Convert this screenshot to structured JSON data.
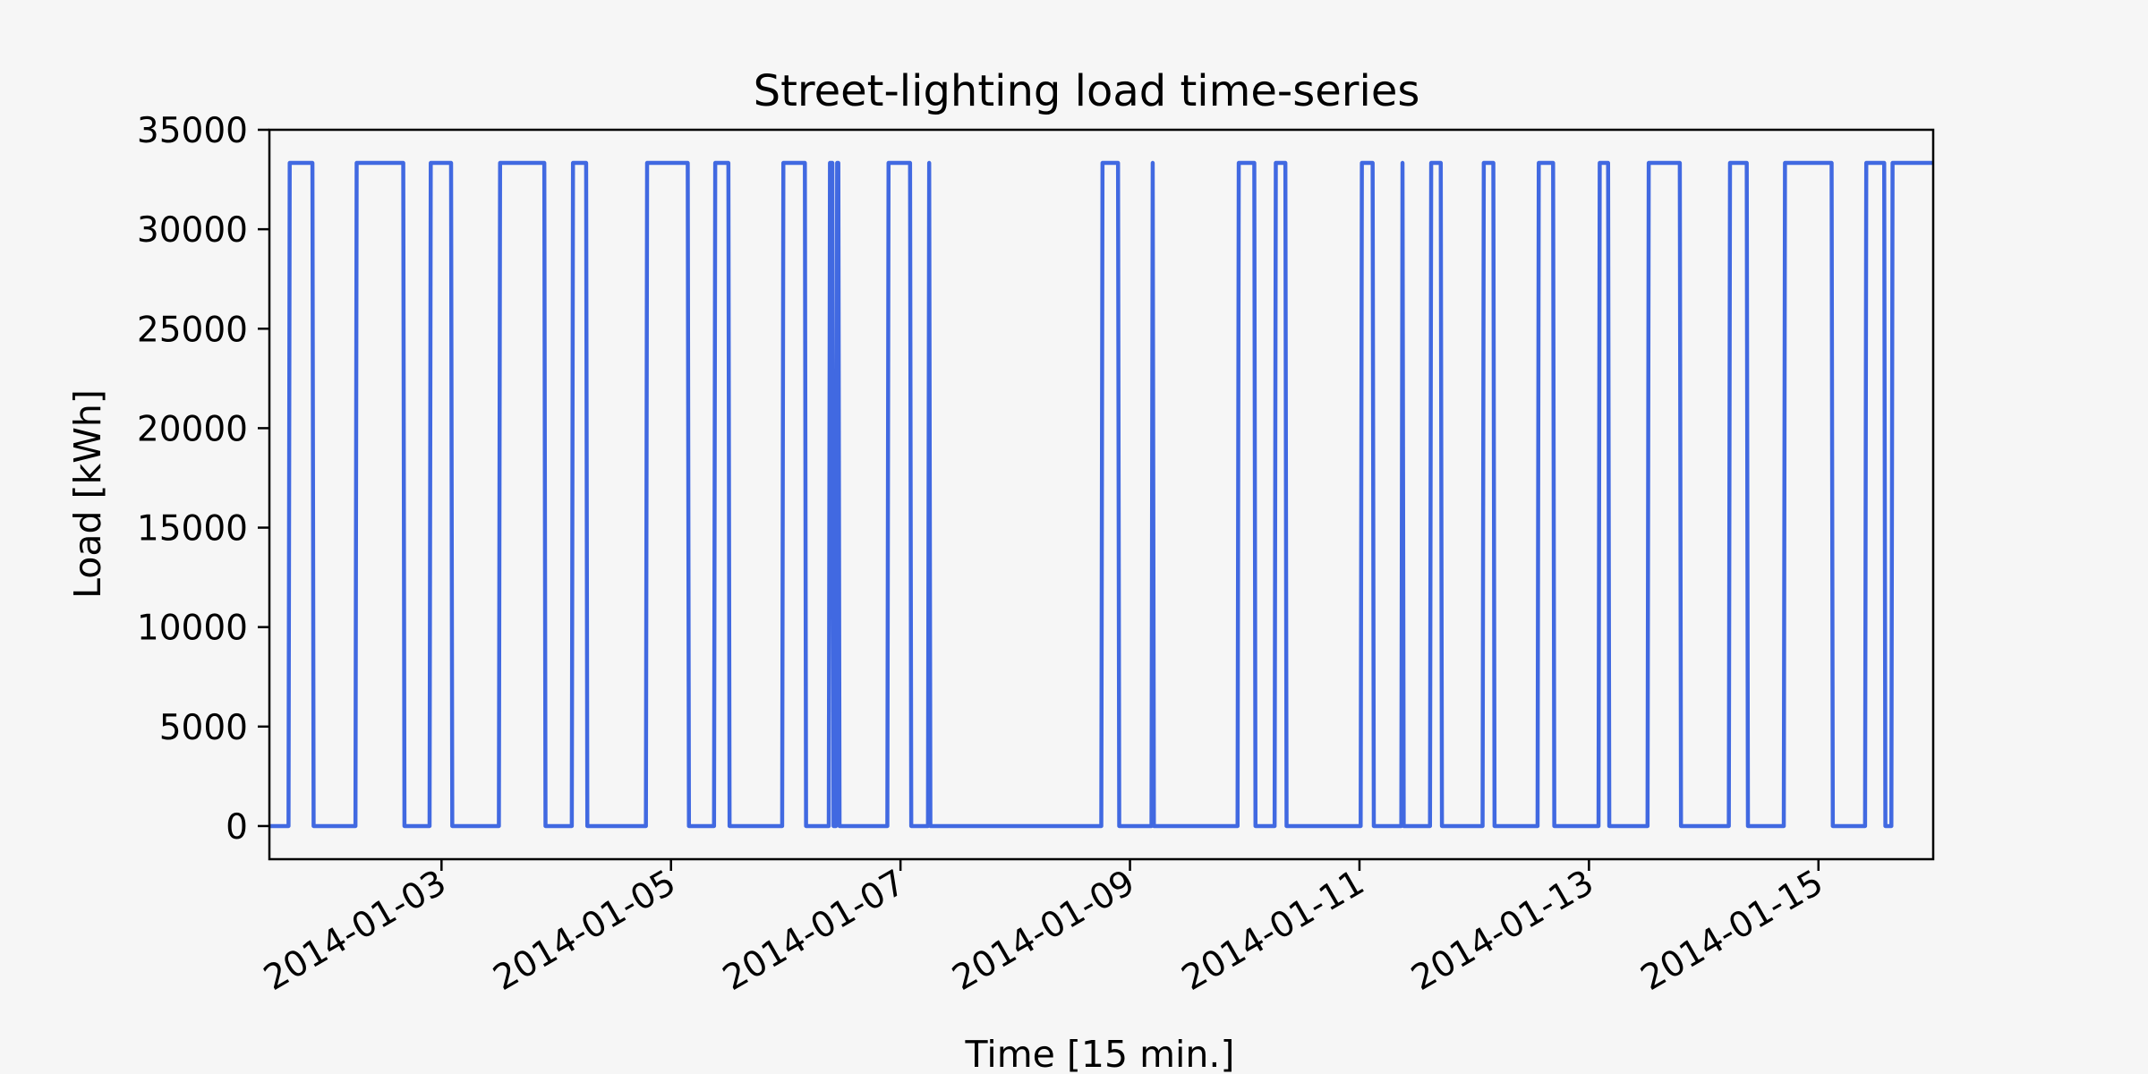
{
  "chart_data": {
    "type": "line",
    "title": "Street-lighting load time-series",
    "xlabel": "Time [15 min.]",
    "ylabel": "Load [kWh]",
    "xlim": [
      "2014-01-01 12:00",
      "2014-01-16 00:00"
    ],
    "ylim": [
      -1667,
      35000
    ],
    "yticks": [
      0,
      5000,
      10000,
      15000,
      20000,
      25000,
      30000,
      35000
    ],
    "xticks": [
      "2014-01-03",
      "2014-01-05",
      "2014-01-07",
      "2014-01-09",
      "2014-01-11",
      "2014-01-13",
      "2014-01-15"
    ],
    "grid": false,
    "legend": "none",
    "colors": {
      "series": "#4169e1",
      "background": "#f6f6f6"
    },
    "series": [
      {
        "points": [
          [
            "2014-01-01 12:00",
            0
          ],
          [
            "2014-01-01 16:00",
            0
          ],
          [
            "2014-01-01 16:15",
            33333
          ],
          [
            "2014-01-01 21:00",
            33333
          ],
          [
            "2014-01-01 21:15",
            0
          ],
          [
            "2014-01-02 06:00",
            0
          ],
          [
            "2014-01-02 06:15",
            33333
          ],
          [
            "2014-01-02 16:00",
            33333
          ],
          [
            "2014-01-02 16:15",
            0
          ],
          [
            "2014-01-02 21:30",
            0
          ],
          [
            "2014-01-02 21:45",
            33333
          ],
          [
            "2014-01-03 02:00",
            33333
          ],
          [
            "2014-01-03 02:15",
            0
          ],
          [
            "2014-01-03 12:00",
            0
          ],
          [
            "2014-01-03 12:15",
            33333
          ],
          [
            "2014-01-03 21:30",
            33333
          ],
          [
            "2014-01-03 21:45",
            0
          ],
          [
            "2014-01-04 03:15",
            0
          ],
          [
            "2014-01-04 03:30",
            33333
          ],
          [
            "2014-01-04 06:15",
            33333
          ],
          [
            "2014-01-04 06:30",
            0
          ],
          [
            "2014-01-04 18:45",
            0
          ],
          [
            "2014-01-04 19:00",
            33333
          ],
          [
            "2014-01-05 03:30",
            33333
          ],
          [
            "2014-01-05 03:45",
            0
          ],
          [
            "2014-01-05 09:00",
            0
          ],
          [
            "2014-01-05 09:15",
            33333
          ],
          [
            "2014-01-05 12:00",
            33333
          ],
          [
            "2014-01-05 12:15",
            0
          ],
          [
            "2014-01-05 23:15",
            0
          ],
          [
            "2014-01-05 23:30",
            33333
          ],
          [
            "2014-01-06 04:00",
            33333
          ],
          [
            "2014-01-06 04:15",
            0
          ],
          [
            "2014-01-06 09:00",
            0
          ],
          [
            "2014-01-06 09:15",
            33333
          ],
          [
            "2014-01-06 09:45",
            33333
          ],
          [
            "2014-01-06 10:00",
            0
          ],
          [
            "2014-01-06 10:30",
            0
          ],
          [
            "2014-01-06 10:45",
            33333
          ],
          [
            "2014-01-06 11:00",
            33333
          ],
          [
            "2014-01-06 11:15",
            0
          ],
          [
            "2014-01-06 21:15",
            0
          ],
          [
            "2014-01-06 21:30",
            33333
          ],
          [
            "2014-01-07 02:00",
            33333
          ],
          [
            "2014-01-07 02:15",
            0
          ],
          [
            "2014-01-07 05:45",
            0
          ],
          [
            "2014-01-07 06:00",
            33333
          ],
          [
            "2014-01-07 06:15",
            0
          ],
          [
            "2014-01-08 18:00",
            0
          ],
          [
            "2014-01-08 18:15",
            33333
          ],
          [
            "2014-01-08 21:30",
            33333
          ],
          [
            "2014-01-08 21:45",
            0
          ],
          [
            "2014-01-09 04:30",
            0
          ],
          [
            "2014-01-09 04:45",
            33333
          ],
          [
            "2014-01-09 05:00",
            0
          ],
          [
            "2014-01-09 22:30",
            0
          ],
          [
            "2014-01-09 22:45",
            33333
          ],
          [
            "2014-01-10 02:00",
            33333
          ],
          [
            "2014-01-10 02:15",
            0
          ],
          [
            "2014-01-10 06:15",
            0
          ],
          [
            "2014-01-10 06:30",
            33333
          ],
          [
            "2014-01-10 08:30",
            33333
          ],
          [
            "2014-01-10 08:45",
            0
          ],
          [
            "2014-01-10 20:45",
            0
          ],
          [
            "2014-01-11 00:15",
            0
          ],
          [
            "2014-01-11 00:30",
            33333
          ],
          [
            "2014-01-11 02:45",
            33333
          ],
          [
            "2014-01-11 03:00",
            0
          ],
          [
            "2014-01-11 08:45",
            0
          ],
          [
            "2014-01-11 09:00",
            33333
          ],
          [
            "2014-01-11 09:15",
            0
          ],
          [
            "2014-01-11 14:45",
            0
          ],
          [
            "2014-01-11 15:00",
            33333
          ],
          [
            "2014-01-11 17:00",
            33333
          ],
          [
            "2014-01-11 17:15",
            0
          ],
          [
            "2014-01-12 01:45",
            0
          ],
          [
            "2014-01-12 02:00",
            33333
          ],
          [
            "2014-01-12 04:00",
            33333
          ],
          [
            "2014-01-12 04:15",
            0
          ],
          [
            "2014-01-12 13:15",
            0
          ],
          [
            "2014-01-12 13:30",
            33333
          ],
          [
            "2014-01-12 16:30",
            33333
          ],
          [
            "2014-01-12 16:45",
            0
          ],
          [
            "2014-01-13 02:00",
            0
          ],
          [
            "2014-01-13 02:15",
            33333
          ],
          [
            "2014-01-13 04:00",
            33333
          ],
          [
            "2014-01-13 04:15",
            0
          ],
          [
            "2014-01-13 12:15",
            0
          ],
          [
            "2014-01-13 12:30",
            33333
          ],
          [
            "2014-01-13 19:00",
            33333
          ],
          [
            "2014-01-13 19:15",
            0
          ],
          [
            "2014-01-14 05:15",
            0
          ],
          [
            "2014-01-14 05:30",
            33333
          ],
          [
            "2014-01-14 09:00",
            33333
          ],
          [
            "2014-01-14 09:15",
            0
          ],
          [
            "2014-01-14 16:45",
            0
          ],
          [
            "2014-01-14 17:00",
            33333
          ],
          [
            "2014-01-15 02:45",
            33333
          ],
          [
            "2014-01-15 03:00",
            0
          ],
          [
            "2014-01-15 09:45",
            0
          ],
          [
            "2014-01-15 10:00",
            33333
          ],
          [
            "2014-01-15 13:45",
            33333
          ],
          [
            "2014-01-15 14:00",
            0
          ],
          [
            "2014-01-15 15:15",
            0
          ],
          [
            "2014-01-15 15:30",
            33333
          ],
          [
            "2014-01-16 00:00",
            33333
          ]
        ]
      }
    ]
  }
}
